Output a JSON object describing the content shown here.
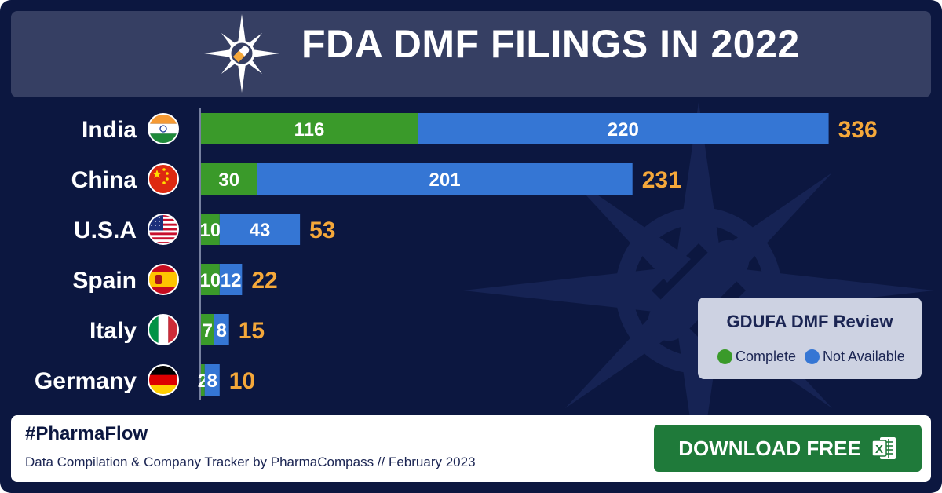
{
  "header": {
    "title": "FDA DMF FILINGS IN 2022"
  },
  "chart_data": {
    "type": "bar",
    "orientation": "horizontal",
    "stacked": true,
    "title": "FDA DMF FILINGS IN 2022",
    "categories": [
      "India",
      "China",
      "U.S.A",
      "Spain",
      "Italy",
      "Germany"
    ],
    "series": [
      {
        "name": "Complete",
        "color": "#3a9a2a",
        "values": [
          116,
          30,
          10,
          10,
          7,
          2
        ]
      },
      {
        "name": "Not Available",
        "color": "#3576d4",
        "values": [
          220,
          201,
          43,
          12,
          8,
          8
        ]
      }
    ],
    "totals": [
      336,
      231,
      53,
      22,
      15,
      10
    ],
    "xlim": [
      0,
      345
    ],
    "grid": false,
    "legend_placement": "bottom-right",
    "flags": [
      "india-flag-icon",
      "china-flag-icon",
      "usa-flag-icon",
      "spain-flag-icon",
      "italy-flag-icon",
      "germany-flag-icon"
    ]
  },
  "legend": {
    "title": "GDUFA DMF Review",
    "items": [
      {
        "label": "Complete",
        "color": "#3a9a2a"
      },
      {
        "label": "Not Available",
        "color": "#3576d4"
      }
    ]
  },
  "footer": {
    "hashtag": "#PharmaFlow",
    "credit": "Data Compilation & Company Tracker by PharmaCompass // February 2023",
    "download_label": "DOWNLOAD FREE",
    "download_icon": "excel-icon"
  },
  "colors": {
    "background": "#0c1740",
    "header": "#363f63",
    "total_label": "#f5a83a",
    "button": "#1f7a3a"
  }
}
